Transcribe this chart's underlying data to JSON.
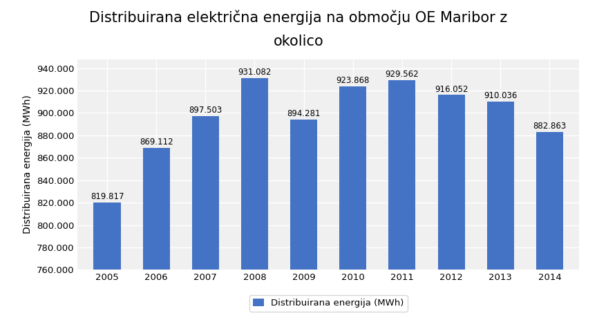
{
  "title_line1": "Distribuirana električna energija na območju OE Maribor z",
  "title_line2": "okolico",
  "ylabel": "Distribuirana energija (MWh)",
  "years": [
    2005,
    2006,
    2007,
    2008,
    2009,
    2010,
    2011,
    2012,
    2013,
    2014
  ],
  "values": [
    819817,
    869112,
    897503,
    931082,
    894281,
    923868,
    929562,
    916052,
    910036,
    882863
  ],
  "labels": [
    "819.817",
    "869.112",
    "897.503",
    "931.082",
    "894.281",
    "923.868",
    "929.562",
    "916.052",
    "910.036",
    "882.863"
  ],
  "bar_color": "#4472C4",
  "ylim_min": 760000,
  "ylim_max": 948000,
  "ytick_step": 20000,
  "legend_label": "Distribuirana energija (MWh)",
  "fig_background": "#ffffff",
  "plot_background": "#f0f0f0",
  "grid_color": "#ffffff",
  "title_fontsize": 15,
  "axis_label_fontsize": 10,
  "tick_fontsize": 9.5,
  "bar_label_fontsize": 8.5
}
